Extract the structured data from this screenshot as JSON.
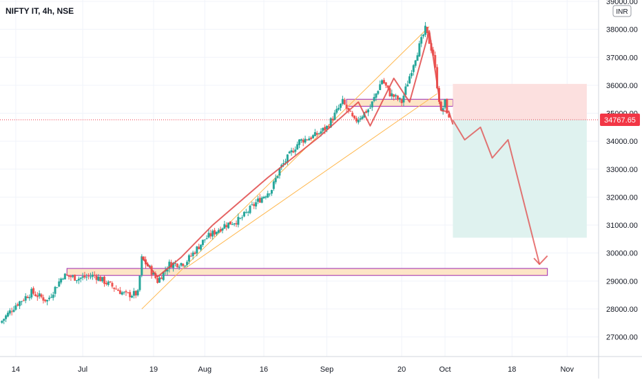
{
  "header": {
    "title": "NIFTY IT, 4h, NSE"
  },
  "currency_badge": "INR",
  "colors": {
    "up": "#26a69a",
    "down": "#ef5350",
    "pattern": "#e04848",
    "zone_fill": "#fde5c6",
    "zone_stroke": "#9c27b0",
    "channel": "#ffb74d",
    "stop_fill": "#fce0df",
    "target_fill": "#dff2ef",
    "price_tag": "#f23645",
    "grid": "#f0f3fa"
  },
  "chart_data": {
    "type": "candlestick",
    "title": "NIFTY IT, 4h, NSE",
    "y_unit": "INR",
    "y_range": [
      26300,
      39050
    ],
    "y_ticks": [
      "27000.00",
      "28000.00",
      "29000.00",
      "30000.00",
      "31000.00",
      "32000.00",
      "33000.00",
      "34000.00",
      "35000.00",
      "36000.00",
      "37000.00",
      "38000.00",
      "39000.00"
    ],
    "x_range": [
      "2021-06-10",
      "2021-11-09"
    ],
    "x_ticks": [
      {
        "label": "14",
        "date": "2021-06-14"
      },
      {
        "label": "Jul",
        "date": "2021-07-01"
      },
      {
        "label": "19",
        "date": "2021-07-19"
      },
      {
        "label": "Aug",
        "date": "2021-08-01"
      },
      {
        "label": "16",
        "date": "2021-08-16"
      },
      {
        "label": "Sep",
        "date": "2021-09-01"
      },
      {
        "label": "20",
        "date": "2021-09-20"
      },
      {
        "label": "Oct",
        "date": "2021-10-01"
      },
      {
        "label": "18",
        "date": "2021-10-18"
      },
      {
        "label": "Nov",
        "date": "2021-11-01"
      }
    ],
    "last_price": 34767.65,
    "last_price_label": "34767.65",
    "price_path": [
      [
        "2021-06-10",
        27500
      ],
      [
        "2021-06-14",
        28150
      ],
      [
        "2021-06-18",
        28600
      ],
      [
        "2021-06-22",
        28300
      ],
      [
        "2021-06-26",
        29200
      ],
      [
        "2021-06-30",
        29100
      ],
      [
        "2021-07-04",
        29200
      ],
      [
        "2021-07-08",
        28850
      ],
      [
        "2021-07-12",
        28500
      ],
      [
        "2021-07-15",
        28550
      ],
      [
        "2021-07-16",
        29800
      ],
      [
        "2021-07-18",
        29450
      ],
      [
        "2021-07-20",
        29000
      ],
      [
        "2021-07-23",
        29600
      ],
      [
        "2021-07-27",
        29650
      ],
      [
        "2021-08-01",
        30500
      ],
      [
        "2021-08-06",
        31000
      ],
      [
        "2021-08-10",
        31200
      ],
      [
        "2021-08-14",
        31800
      ],
      [
        "2021-08-18",
        32300
      ],
      [
        "2021-08-20",
        33000
      ],
      [
        "2021-08-25",
        34000
      ],
      [
        "2021-08-29",
        34200
      ],
      [
        "2021-09-01",
        34500
      ],
      [
        "2021-09-05",
        35400
      ],
      [
        "2021-09-08",
        34700
      ],
      [
        "2021-09-12",
        35200
      ],
      [
        "2021-09-15",
        36200
      ],
      [
        "2021-09-17",
        35700
      ],
      [
        "2021-09-20",
        35400
      ],
      [
        "2021-09-23",
        36800
      ],
      [
        "2021-09-26",
        38000
      ],
      [
        "2021-09-28",
        37100
      ],
      [
        "2021-09-29",
        36000
      ],
      [
        "2021-09-30",
        35000
      ],
      [
        "2021-10-01",
        35400
      ],
      [
        "2021-10-02",
        34767.65
      ]
    ],
    "support_zone": {
      "from": "2021-06-27",
      "to": "2021-10-27",
      "low": 29200,
      "high": 29450
    },
    "resistance_zone": {
      "from": "2021-09-06",
      "to": "2021-10-03",
      "low": 35250,
      "high": 35500
    },
    "channel_lines": [
      {
        "from": [
          "2021-07-16",
          28000
        ],
        "to": [
          "2021-09-27",
          38100
        ]
      },
      {
        "from": [
          "2021-07-27",
          29450
        ],
        "to": [
          "2021-09-29",
          35700
        ]
      }
    ],
    "pattern_path": [
      [
        "2021-07-16",
        29850
      ],
      [
        "2021-07-20",
        29150
      ],
      [
        "2021-07-26",
        29850
      ],
      [
        "2021-08-03",
        31000
      ],
      [
        "2021-08-17",
        32700
      ],
      [
        "2021-08-30",
        34150
      ],
      [
        "2021-09-09",
        35400
      ],
      [
        "2021-09-12",
        34550
      ],
      [
        "2021-09-18",
        36250
      ],
      [
        "2021-09-22",
        35400
      ],
      [
        "2021-09-27",
        37950
      ],
      [
        "2021-09-30",
        35100
      ],
      [
        "2021-10-02",
        35050
      ],
      [
        "2021-10-03",
        34600
      ]
    ],
    "projection_path": [
      [
        "2021-10-03",
        34750
      ],
      [
        "2021-10-06",
        34050
      ],
      [
        "2021-10-10",
        34500
      ],
      [
        "2021-10-13",
        33400
      ],
      [
        "2021-10-17",
        34050
      ],
      [
        "2021-10-25",
        29600
      ],
      [
        "2021-10-27",
        29900
      ]
    ],
    "trade_box": {
      "from": "2021-10-03",
      "to": "2021-11-06",
      "entry": 34767.65,
      "stop": 36050,
      "target": 30550
    }
  }
}
